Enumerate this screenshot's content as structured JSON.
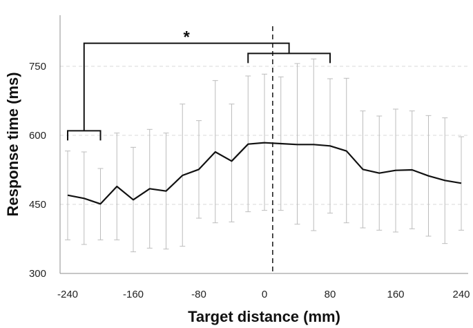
{
  "chart_data": {
    "type": "line",
    "xlabel": "Target distance (mm)",
    "ylabel": "Response time (ms)",
    "xlim": [
      -250,
      250
    ],
    "ylim": [
      300,
      800
    ],
    "x_ticks": [
      -240,
      -160,
      -80,
      0,
      80,
      160,
      240
    ],
    "y_ticks": [
      300,
      450,
      600,
      750
    ],
    "x_tick_labels": [
      "-240",
      "-160",
      "-80",
      "0",
      "80",
      "160",
      "240"
    ],
    "y_tick_labels": [
      "300",
      "450",
      "600",
      "750"
    ],
    "grid": "horizontal-dashed",
    "reference_line_x": 10,
    "significance_marker": "*",
    "brackets": [
      {
        "x_start": -240,
        "x_end": -200,
        "y": 610
      },
      {
        "x_start": -20,
        "x_end": 80,
        "y": 778
      }
    ],
    "top_bracket": {
      "x_left": -220,
      "x_right": 30,
      "y": 800
    },
    "series": [
      {
        "x": [
          -240,
          -220,
          -200,
          -180,
          -160,
          -140,
          -120,
          -100,
          -80,
          -60,
          -40,
          -20,
          0,
          20,
          40,
          60,
          80,
          100,
          120,
          140,
          160,
          180,
          200,
          220,
          240
        ],
        "values": [
          470,
          463,
          451,
          489,
          460,
          484,
          479,
          513,
          526,
          564,
          544,
          581,
          584,
          582,
          580,
          580,
          577,
          566,
          526,
          518,
          524,
          525,
          512,
          502,
          496
        ],
        "err_low": [
          373,
          363,
          373,
          373,
          347,
          355,
          353,
          359,
          420,
          410,
          412,
          434,
          437,
          437,
          407,
          393,
          431,
          410,
          399,
          394,
          390,
          397,
          381,
          365,
          394
        ],
        "err_high": [
          566,
          564,
          528,
          605,
          574,
          613,
          605,
          668,
          632,
          719,
          668,
          729,
          733,
          727,
          756,
          766,
          723,
          724,
          653,
          642,
          657,
          653,
          643,
          638,
          597
        ]
      }
    ]
  }
}
